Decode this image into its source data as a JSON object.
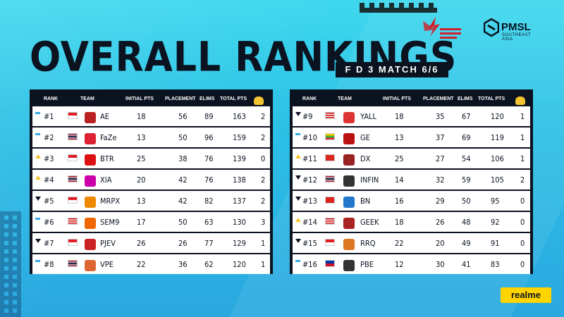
{
  "title": "OVERALL RANKINGS",
  "match_label": "F D 3 MATCH 6/6",
  "brand": {
    "pmsl": "PMSL",
    "pmsl_sub": "SOUTHEAST ASIA",
    "sponsor": "realme"
  },
  "columns": [
    "RANK",
    "TEAM",
    "INITIAL PTS",
    "PLACEMENT",
    "ELIMS",
    "TOTAL PTS"
  ],
  "colors": {
    "accent": "#2cc0e6",
    "dark": "#0b1220",
    "up": "#f4c430",
    "same": "#35a9e6"
  },
  "left_rows": [
    {
      "rank": "#1",
      "change": "same",
      "country": "ID",
      "team": "AE",
      "initial": "18",
      "placement": "56",
      "elims": "89",
      "total": "163",
      "wins": "2"
    },
    {
      "rank": "#2",
      "change": "same",
      "country": "TH",
      "team": "FaZe",
      "initial": "13",
      "placement": "50",
      "elims": "96",
      "total": "159",
      "wins": "2"
    },
    {
      "rank": "#3",
      "change": "up",
      "country": "ID",
      "team": "BTR",
      "initial": "25",
      "placement": "38",
      "elims": "76",
      "total": "139",
      "wins": "0"
    },
    {
      "rank": "#4",
      "change": "up",
      "country": "TH",
      "team": "XIA",
      "initial": "20",
      "placement": "42",
      "elims": "76",
      "total": "138",
      "wins": "2"
    },
    {
      "rank": "#5",
      "change": "down",
      "country": "ID",
      "team": "MRPX",
      "initial": "13",
      "placement": "42",
      "elims": "82",
      "total": "137",
      "wins": "2"
    },
    {
      "rank": "#6",
      "change": "same",
      "country": "MY",
      "team": "SEM9",
      "initial": "17",
      "placement": "50",
      "elims": "63",
      "total": "130",
      "wins": "3"
    },
    {
      "rank": "#7",
      "change": "down",
      "country": "ID",
      "team": "PJEV",
      "initial": "26",
      "placement": "26",
      "elims": "77",
      "total": "129",
      "wins": "1"
    },
    {
      "rank": "#8",
      "change": "same",
      "country": "TH",
      "team": "VPE",
      "initial": "22",
      "placement": "36",
      "elims": "62",
      "total": "120",
      "wins": "1"
    }
  ],
  "right_rows": [
    {
      "rank": "#9",
      "change": "down",
      "country": "MY",
      "team": "YALL",
      "initial": "18",
      "placement": "35",
      "elims": "67",
      "total": "120",
      "wins": "1"
    },
    {
      "rank": "#10",
      "change": "same",
      "country": "MM",
      "team": "GE",
      "initial": "13",
      "placement": "37",
      "elims": "69",
      "total": "119",
      "wins": "1"
    },
    {
      "rank": "#11",
      "change": "up",
      "country": "VN",
      "team": "DX",
      "initial": "25",
      "placement": "27",
      "elims": "54",
      "total": "106",
      "wins": "1"
    },
    {
      "rank": "#12",
      "change": "down",
      "country": "TH",
      "team": "INFIN",
      "initial": "14",
      "placement": "32",
      "elims": "59",
      "total": "105",
      "wins": "2"
    },
    {
      "rank": "#13",
      "change": "down",
      "country": "VN",
      "team": "BN",
      "initial": "16",
      "placement": "29",
      "elims": "50",
      "total": "95",
      "wins": "0"
    },
    {
      "rank": "#14",
      "change": "up",
      "country": "MY",
      "team": "GEEK",
      "initial": "18",
      "placement": "26",
      "elims": "48",
      "total": "92",
      "wins": "0"
    },
    {
      "rank": "#15",
      "change": "down",
      "country": "ID",
      "team": "RRQ",
      "initial": "22",
      "placement": "20",
      "elims": "49",
      "total": "91",
      "wins": "0"
    },
    {
      "rank": "#16",
      "change": "same",
      "country": "PH",
      "team": "PBE",
      "initial": "12",
      "placement": "30",
      "elims": "41",
      "total": "83",
      "wins": "0"
    }
  ]
}
